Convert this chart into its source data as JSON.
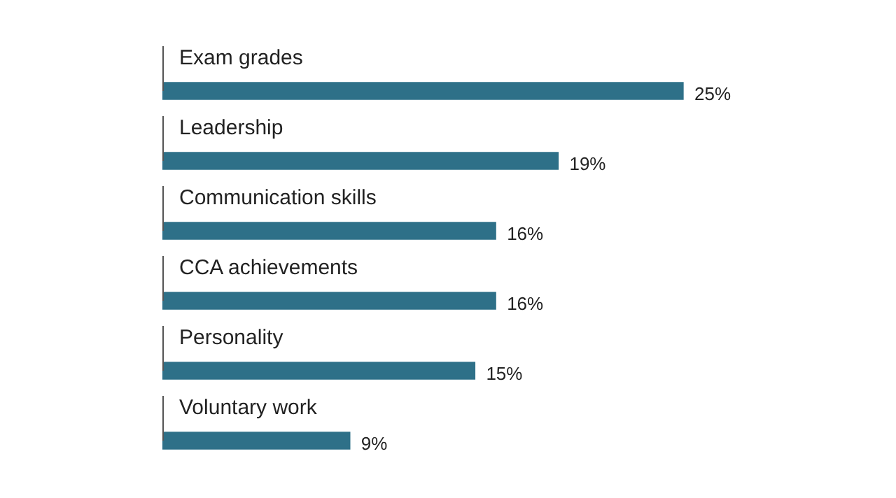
{
  "chart_data": {
    "type": "bar",
    "orientation": "horizontal",
    "categories": [
      "Exam grades",
      "Leadership",
      "Communication skills",
      "CCA achievements",
      "Personality",
      "Voluntary work"
    ],
    "values": [
      25,
      19,
      16,
      16,
      15,
      9
    ],
    "color": "#2e7088",
    "data_labels": true,
    "value_labels": [
      "25%",
      "19%",
      "16%",
      "16%",
      "15%",
      "9%"
    ],
    "tick_labels": false
  }
}
